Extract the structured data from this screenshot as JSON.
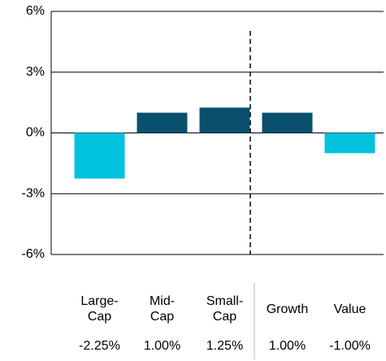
{
  "chart_data": {
    "type": "bar",
    "categories": [
      "Large-\nCap",
      "Mid-\nCap",
      "Small-\nCap",
      "Growth",
      "Value"
    ],
    "values": [
      -2.25,
      1.0,
      1.25,
      1.0,
      -1.0
    ],
    "value_labels": [
      "-2.25%",
      "1.00%",
      "1.25%",
      "1.00%",
      "-1.00%"
    ],
    "colors": [
      "#00c2de",
      "#0b4f6e",
      "#0b4f6e",
      "#0b4f6e",
      "#00c2de"
    ],
    "ylim": [
      -6,
      6
    ],
    "yticks": [
      {
        "value": -6,
        "label": "-6%"
      },
      {
        "value": -3,
        "label": "-3%"
      },
      {
        "value": 0,
        "label": "0%"
      },
      {
        "value": 3,
        "label": "3%"
      },
      {
        "value": 6,
        "label": "6%"
      }
    ],
    "grid": true
  }
}
